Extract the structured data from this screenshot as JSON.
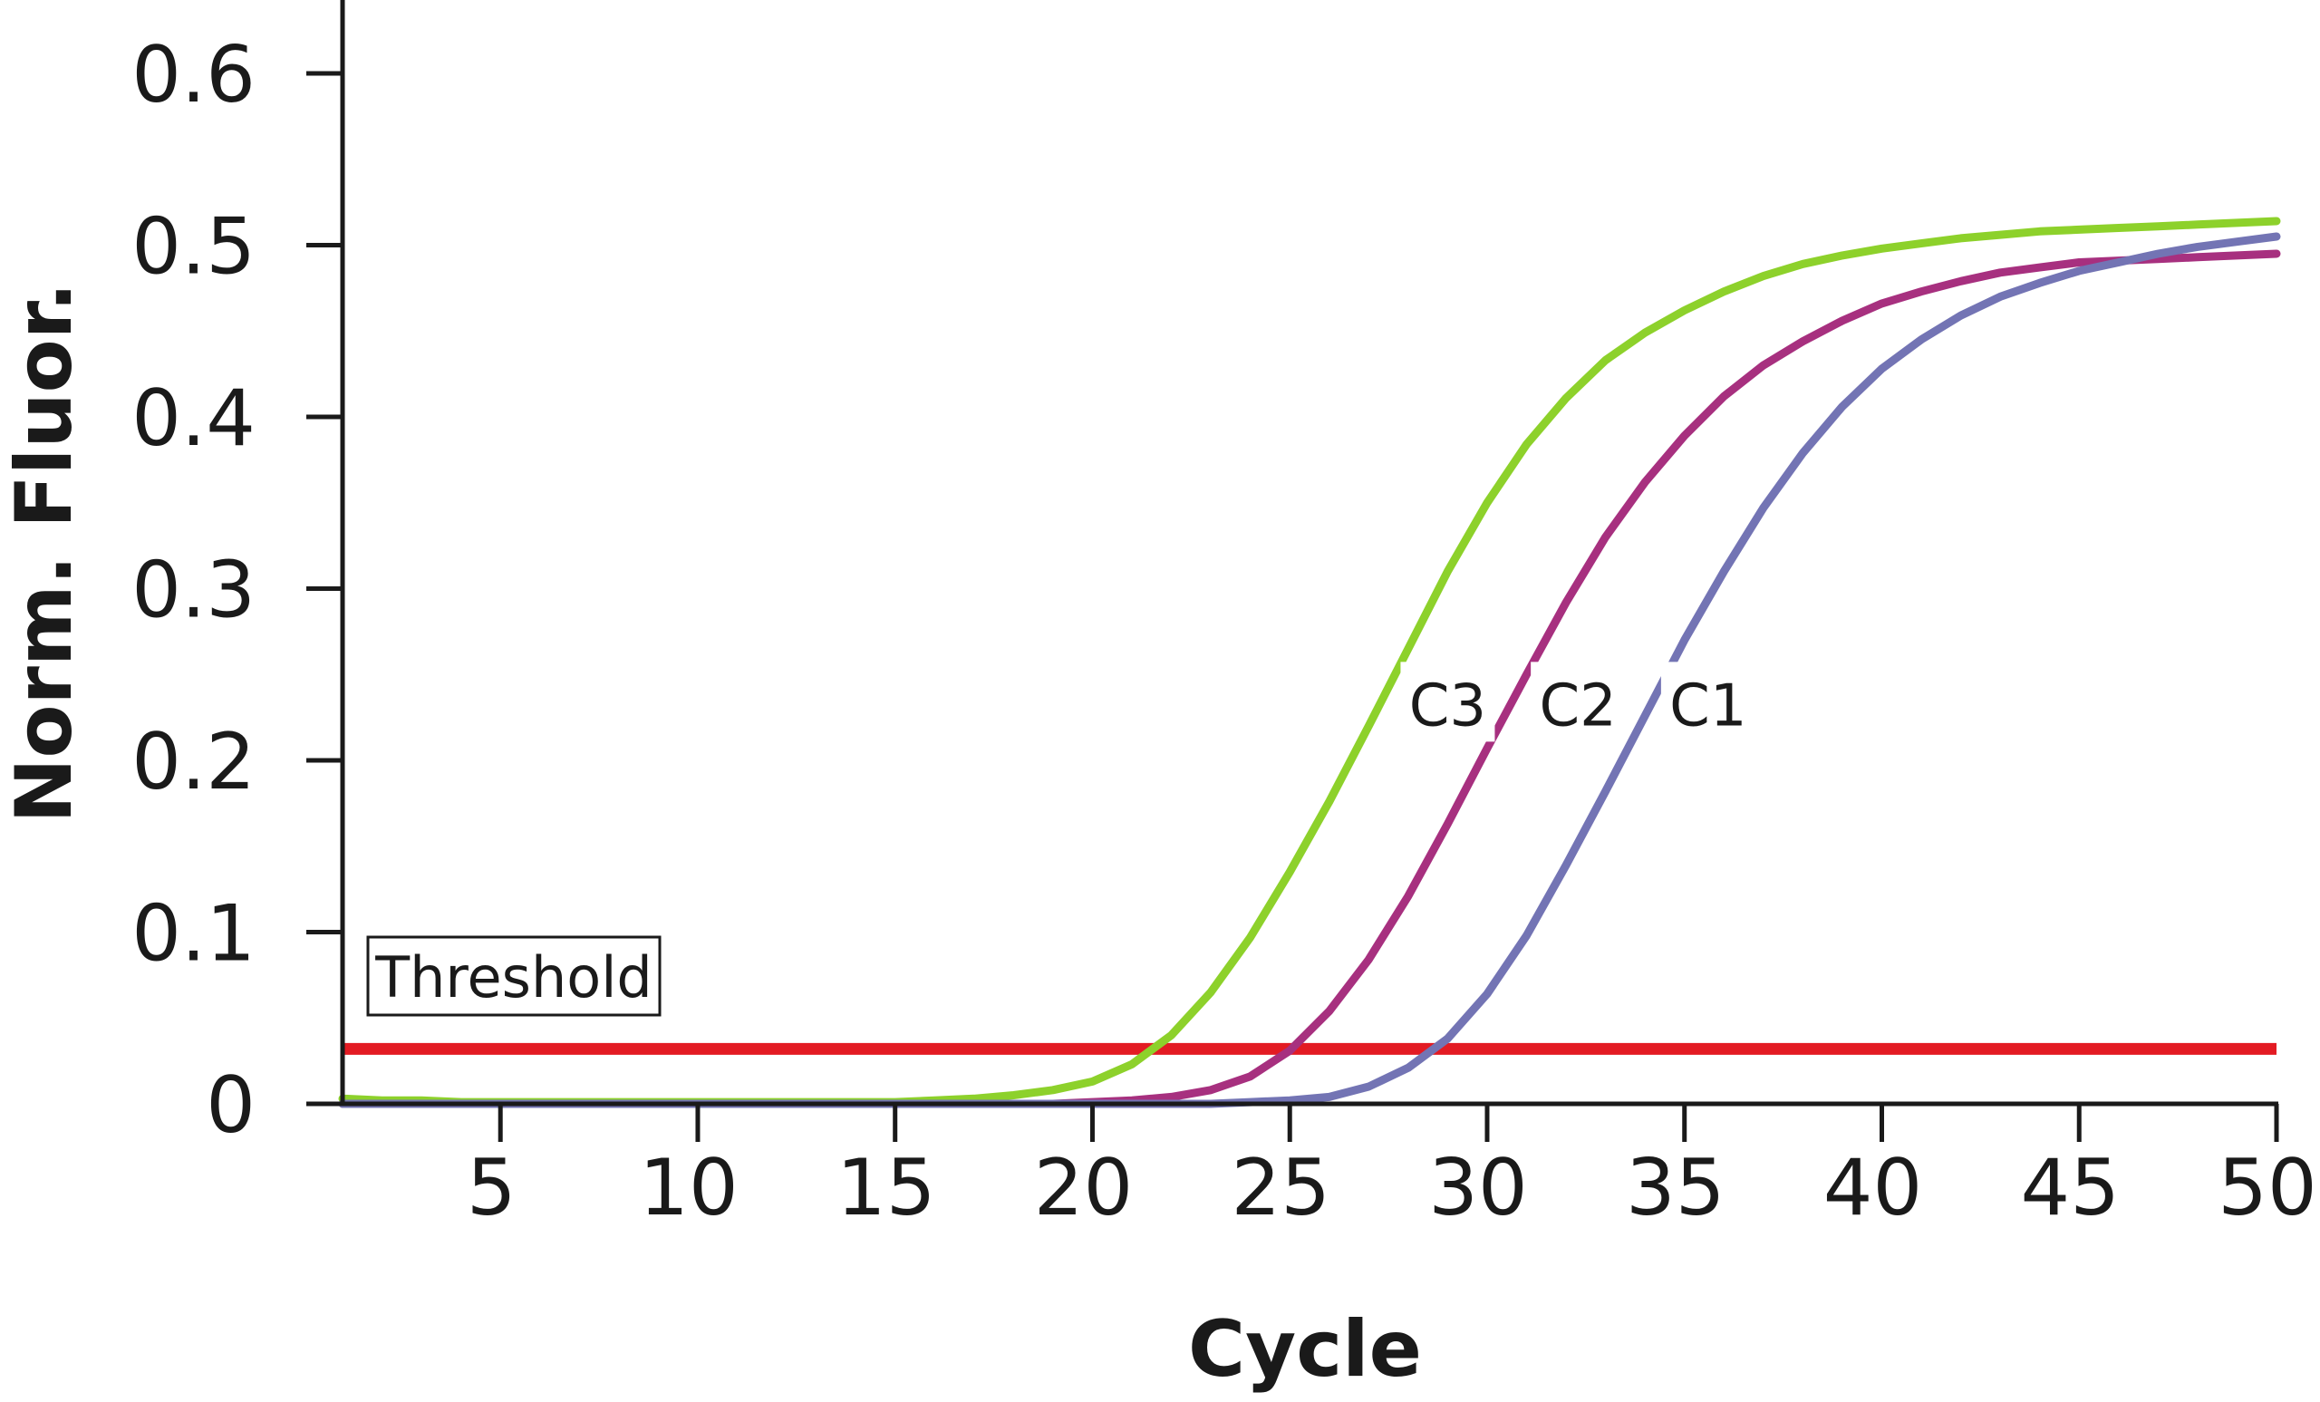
{
  "chart_data": {
    "type": "line",
    "title": "",
    "xlabel": "Cycle",
    "ylabel": "Norm. Fluor.",
    "xlim": [
      1,
      50
    ],
    "ylim": [
      0,
      0.64
    ],
    "x_ticks": [
      5,
      10,
      15,
      20,
      25,
      30,
      35,
      40,
      45,
      50
    ],
    "y_ticks": [
      0,
      0.1,
      0.2,
      0.3,
      0.4,
      0.5,
      0.6
    ],
    "y_tick_labels": [
      "0",
      "0.1",
      "0.2",
      "0.3",
      "0.4",
      "0.5",
      "0.6"
    ],
    "grid": false,
    "threshold": {
      "label": "Threshold",
      "value": 0.032,
      "color": "#e31b23"
    },
    "series": [
      {
        "name": "C3",
        "color": "#8dd12b",
        "label_at": [
          29,
          0.232
        ],
        "x": [
          1,
          2,
          3,
          4,
          5,
          6,
          7,
          8,
          9,
          10,
          11,
          12,
          13,
          14,
          15,
          16,
          17,
          18,
          19,
          20,
          21,
          22,
          23,
          24,
          25,
          26,
          27,
          28,
          29,
          30,
          31,
          32,
          33,
          34,
          35,
          36,
          37,
          38,
          39,
          40,
          41,
          42,
          43,
          44,
          45,
          46,
          47,
          48,
          49,
          50
        ],
        "values": [
          0.003,
          0.002,
          0.002,
          0.001,
          0.001,
          0.001,
          0.001,
          0.001,
          0.001,
          0.001,
          0.001,
          0.001,
          0.001,
          0.001,
          0.001,
          0.002,
          0.003,
          0.005,
          0.008,
          0.013,
          0.023,
          0.04,
          0.065,
          0.097,
          0.135,
          0.176,
          0.22,
          0.265,
          0.31,
          0.35,
          0.384,
          0.411,
          0.433,
          0.449,
          0.462,
          0.473,
          0.482,
          0.489,
          0.494,
          0.498,
          0.501,
          0.504,
          0.506,
          0.508,
          0.509,
          0.51,
          0.511,
          0.512,
          0.513,
          0.514
        ]
      },
      {
        "name": "C2",
        "color": "#a7307f",
        "label_at": [
          32.3,
          0.232
        ],
        "x": [
          1,
          2,
          3,
          4,
          5,
          6,
          7,
          8,
          9,
          10,
          11,
          12,
          13,
          14,
          15,
          16,
          17,
          18,
          19,
          20,
          21,
          22,
          23,
          24,
          25,
          26,
          27,
          28,
          29,
          30,
          31,
          32,
          33,
          34,
          35,
          36,
          37,
          38,
          39,
          40,
          41,
          42,
          43,
          44,
          45,
          46,
          47,
          48,
          49,
          50
        ],
        "values": [
          0,
          0,
          0,
          0,
          0,
          0,
          0,
          0,
          0,
          0,
          0,
          0,
          0,
          0,
          0,
          0,
          0,
          0,
          0,
          0.001,
          0.002,
          0.004,
          0.008,
          0.016,
          0.031,
          0.054,
          0.084,
          0.121,
          0.163,
          0.207,
          0.25,
          0.292,
          0.33,
          0.362,
          0.389,
          0.412,
          0.43,
          0.444,
          0.456,
          0.466,
          0.473,
          0.479,
          0.484,
          0.487,
          0.49,
          0.491,
          0.492,
          0.493,
          0.494,
          0.495
        ]
      },
      {
        "name": "C1",
        "color": "#7374b4",
        "label_at": [
          35.6,
          0.232
        ],
        "x": [
          1,
          2,
          3,
          4,
          5,
          6,
          7,
          8,
          9,
          10,
          11,
          12,
          13,
          14,
          15,
          16,
          17,
          18,
          19,
          20,
          21,
          22,
          23,
          24,
          25,
          26,
          27,
          28,
          29,
          30,
          31,
          32,
          33,
          34,
          35,
          36,
          37,
          38,
          39,
          40,
          41,
          42,
          43,
          44,
          45,
          46,
          47,
          48,
          49,
          50
        ],
        "values": [
          0,
          0,
          0,
          0,
          0,
          0,
          0,
          0,
          0,
          0,
          0,
          0,
          0,
          0,
          0,
          0,
          0,
          0,
          0,
          0,
          0,
          0,
          0,
          0.001,
          0.002,
          0.004,
          0.01,
          0.021,
          0.038,
          0.064,
          0.098,
          0.139,
          0.182,
          0.226,
          0.27,
          0.31,
          0.347,
          0.379,
          0.406,
          0.428,
          0.445,
          0.459,
          0.47,
          0.478,
          0.485,
          0.49,
          0.495,
          0.499,
          0.502,
          0.505
        ]
      }
    ]
  }
}
